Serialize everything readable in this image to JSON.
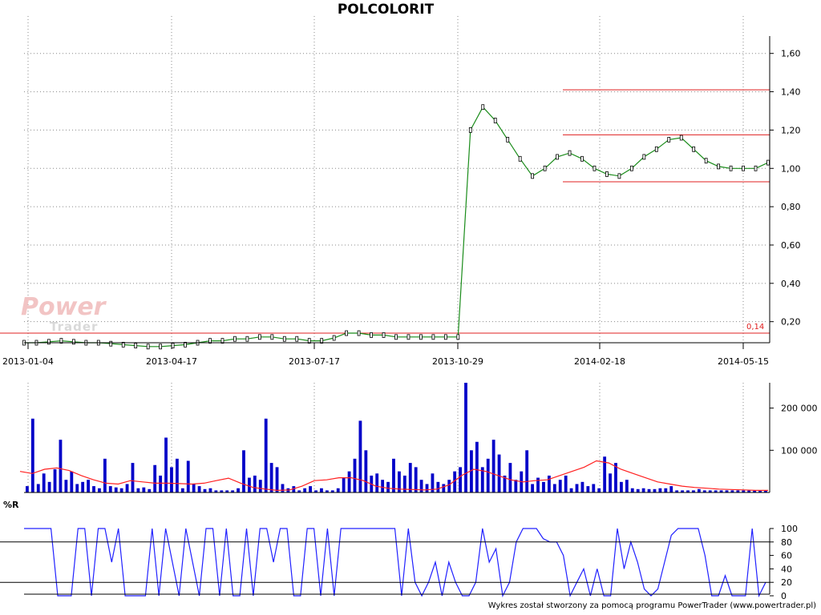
{
  "title": "POLCOLORIT",
  "watermark": {
    "line1": "Power",
    "line2": "Trader"
  },
  "footer": "Wykres został stworzony za pomocą programu PowerTrader (www.powertrader.pl)",
  "colors": {
    "price": "#000000",
    "ma": "#1a8c1a",
    "level": "#e02020",
    "volume": "#0000c8",
    "volume_ma": "#ff2020",
    "willr": "#2020ff"
  },
  "x_axis": {
    "ticks": [
      "2013-01-04",
      "2013-04-17",
      "2013-07-17",
      "2013-10-29",
      "2014-02-18",
      "2014-05-15"
    ]
  },
  "chart_data": [
    {
      "type": "line",
      "title": "POLCOLORIT",
      "ylim": [
        0.09,
        1.72
      ],
      "y_ticks": [
        "1,60",
        "1,40",
        "1,20",
        "1,00",
        "0,80",
        "0,60",
        "0,40",
        "0,20"
      ],
      "y_tick_values": [
        1.6,
        1.4,
        1.2,
        1.0,
        0.8,
        0.6,
        0.4,
        0.2
      ],
      "levels": [
        1.41,
        1.175,
        0.93,
        0.14
      ],
      "level_label": "0,14",
      "series": [
        {
          "values": [
            0.09,
            0.09,
            0.095,
            0.1,
            0.095,
            0.09,
            0.09,
            0.085,
            0.08,
            0.075,
            0.07,
            0.07,
            0.075,
            0.08,
            0.09,
            0.1,
            0.1,
            0.11,
            0.11,
            0.12,
            0.12,
            0.11,
            0.11,
            0.1,
            0.1,
            0.115,
            0.14,
            0.14,
            0.13,
            0.13,
            0.12,
            0.12,
            0.12,
            0.12,
            0.12,
            0.12,
            1.2,
            1.32,
            1.25,
            1.15,
            1.05,
            0.96,
            1.0,
            1.06,
            1.08,
            1.05,
            1.0,
            0.97,
            0.96,
            1.0,
            1.06,
            1.1,
            1.15,
            1.16,
            1.1,
            1.04,
            1.01,
            1.0,
            1.0,
            1.0,
            1.03
          ]
        }
      ]
    },
    {
      "type": "bar",
      "ylim": [
        0,
        260000
      ],
      "y_ticks": [
        "200 000",
        "100 000"
      ],
      "y_tick_values": [
        200000,
        100000
      ],
      "values": [
        15000,
        175000,
        20000,
        45000,
        25000,
        55000,
        125000,
        30000,
        50000,
        20000,
        25000,
        30000,
        15000,
        10000,
        80000,
        15000,
        12000,
        10000,
        20000,
        70000,
        10000,
        12000,
        8000,
        65000,
        40000,
        130000,
        60000,
        80000,
        10000,
        75000,
        20000,
        15000,
        8000,
        10000,
        5000,
        5000,
        5000,
        5000,
        10000,
        100000,
        35000,
        40000,
        30000,
        175000,
        70000,
        60000,
        20000,
        10000,
        15000,
        5000,
        10000,
        15000,
        5000,
        10000,
        5000,
        5000,
        10000,
        35000,
        50000,
        80000,
        170000,
        100000,
        40000,
        45000,
        30000,
        25000,
        80000,
        50000,
        40000,
        70000,
        60000,
        30000,
        20000,
        45000,
        25000,
        20000,
        30000,
        50000,
        60000,
        260000,
        100000,
        120000,
        60000,
        80000,
        125000,
        90000,
        40000,
        70000,
        30000,
        50000,
        100000,
        20000,
        35000,
        25000,
        40000,
        20000,
        30000,
        40000,
        10000,
        20000,
        25000,
        15000,
        20000,
        10000,
        85000,
        45000,
        70000,
        25000,
        30000,
        10000,
        8000,
        10000,
        8000,
        8000,
        10000,
        10000,
        15000,
        5000,
        5000,
        5000,
        5000,
        8000,
        5000,
        5000,
        5000,
        5000,
        5000,
        5000,
        5000,
        5000,
        5000,
        5000,
        5000,
        5000
      ],
      "ma": [
        50000,
        45000,
        55000,
        58000,
        52000,
        40000,
        30000,
        22000,
        20000,
        28000,
        25000,
        22000,
        22000,
        21000,
        20000,
        22000,
        28000,
        34000,
        22000,
        12000,
        8000,
        5000,
        6000,
        15000,
        28000,
        30000,
        35000,
        35000,
        28000,
        15000,
        10000,
        8000,
        7000,
        6000,
        8000,
        18000,
        40000,
        55000,
        50000,
        40000,
        30000,
        25000,
        28000,
        30000,
        40000,
        50000,
        60000,
        75000,
        70000,
        55000,
        45000,
        35000,
        25000,
        20000,
        15000,
        12000,
        10000,
        8000,
        7000,
        6000,
        5000,
        5000
      ]
    },
    {
      "type": "line",
      "title": "%R",
      "ylim": [
        0,
        100
      ],
      "y_ticks": [
        "100",
        "80",
        "60",
        "40",
        "20",
        "0"
      ],
      "y_tick_values": [
        100,
        80,
        60,
        40,
        20,
        0
      ],
      "reference_lines": [
        80,
        20
      ],
      "values": [
        100,
        100,
        100,
        100,
        100,
        0,
        0,
        0,
        100,
        100,
        0,
        100,
        100,
        50,
        100,
        0,
        0,
        0,
        0,
        100,
        0,
        100,
        50,
        0,
        100,
        50,
        0,
        100,
        100,
        0,
        100,
        0,
        0,
        100,
        0,
        100,
        100,
        50,
        100,
        100,
        0,
        0,
        100,
        100,
        0,
        100,
        0,
        100,
        100,
        100,
        100,
        100,
        100,
        100,
        100,
        100,
        0,
        100,
        20,
        0,
        20,
        50,
        0,
        50,
        20,
        0,
        0,
        20,
        100,
        50,
        70,
        0,
        20,
        80,
        100,
        100,
        100,
        85,
        80,
        80,
        60,
        0,
        20,
        40,
        0,
        40,
        0,
        0,
        100,
        40,
        80,
        50,
        10,
        0,
        10,
        50,
        90,
        100,
        100,
        100,
        100,
        60,
        0,
        0,
        30,
        0,
        0,
        0,
        100,
        0,
        20
      ]
    }
  ]
}
